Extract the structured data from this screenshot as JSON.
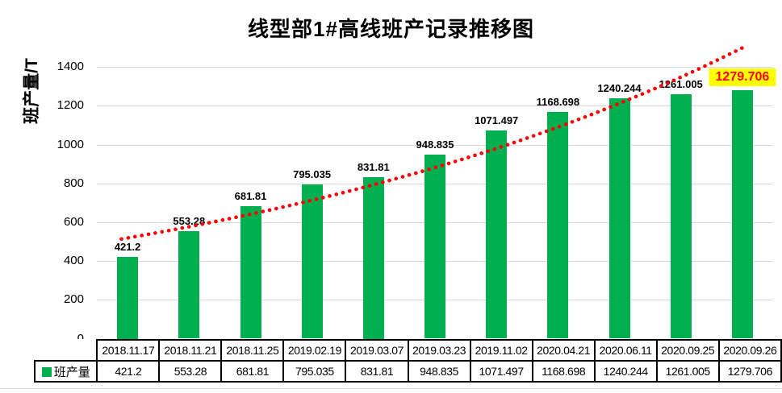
{
  "chart_data": {
    "type": "bar",
    "title": "线型部1#高线班产记录推移图",
    "ylabel": "班产量/T",
    "xlabel": "",
    "categories": [
      "2018.11.17",
      "2018.11.21",
      "2018.11.25",
      "2019.02.19",
      "2019.03.07",
      "2019.03.23",
      "2019.11.02",
      "2020.04.21",
      "2020.06.11",
      "2020.09.25",
      "2020.09.26"
    ],
    "series": [
      {
        "name": "班产量",
        "color": "#00B050",
        "values": [
          421.2,
          553.28,
          681.81,
          795.035,
          831.81,
          948.835,
          1071.497,
          1168.698,
          1240.244,
          1261.005,
          1279.706
        ],
        "value_labels": [
          "421.2",
          "553.28",
          "681.81",
          "795.035",
          "831.81",
          "948.835",
          "1071.497",
          "1168.698",
          "1240.244",
          "1261.005",
          "1279.706"
        ]
      }
    ],
    "ylim": [
      0,
      1400
    ],
    "ytick_interval": 200,
    "grid": true,
    "gridline_color": "#D9D9D9",
    "legend_position": "bottom-table-left",
    "data_table_below": true,
    "trendline": {
      "shape": "exponential",
      "color": "#FF0000",
      "style": "dotted"
    },
    "last_label_highlight": {
      "background": "#FFFF00",
      "text_color": "#FF0000"
    }
  },
  "colors": {
    "bar": "#00B050",
    "trend": "#FF0000",
    "highlight_bg": "#FFFF00",
    "highlight_text": "#FF0000",
    "gridline": "#D9D9D9",
    "table_border": "#000000",
    "text": "#000000"
  }
}
